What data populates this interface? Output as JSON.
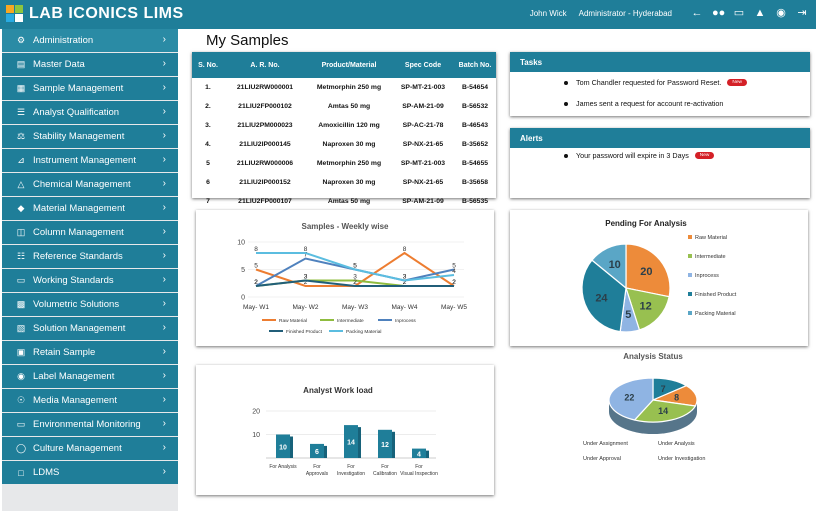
{
  "app": {
    "logo_text": "LAB ICONICS LIMS"
  },
  "header": {
    "user": "John Wick",
    "role": "Administrator - Hyderabad"
  },
  "sidebar": {
    "items": [
      {
        "label": "Administration"
      },
      {
        "label": "Master Data"
      },
      {
        "label": "Sample Management"
      },
      {
        "label": "Analyst Qualification"
      },
      {
        "label": "Stability Management"
      },
      {
        "label": "Instrument Management"
      },
      {
        "label": "Chemical Management"
      },
      {
        "label": "Material Management"
      },
      {
        "label": "Column Management"
      },
      {
        "label": "Reference Standards"
      },
      {
        "label": "Working Standards"
      },
      {
        "label": "Volumetric Solutions"
      },
      {
        "label": "Solution Management"
      },
      {
        "label": "Retain Sample"
      },
      {
        "label": "Label Management"
      },
      {
        "label": "Media Management"
      },
      {
        "label": "Environmental Monitoring"
      },
      {
        "label": "Culture Management"
      },
      {
        "label": "LDMS"
      }
    ]
  },
  "page": {
    "title": "My Samples"
  },
  "samples": {
    "headers": {
      "sno": "S. No.",
      "ar": "A. R. No.",
      "product": "Product/Material",
      "spec": "Spec Code",
      "batch": "Batch No."
    },
    "rows": [
      {
        "sno": "1.",
        "ar": "21LIU2RW000001",
        "product": "Metmorphin 250 mg",
        "spec": "SP-MT-21-003",
        "batch": "B-54654"
      },
      {
        "sno": "2.",
        "ar": "21LIU2FP000102",
        "product": "Amtas 50 mg",
        "spec": "SP-AM-21-09",
        "batch": "B-56532"
      },
      {
        "sno": "3.",
        "ar": "21LIU2PM000023",
        "product": "Amoxicillin 120 mg",
        "spec": "SP-AC-21-78",
        "batch": "B-46543"
      },
      {
        "sno": "4.",
        "ar": "21LIU2IP000145",
        "product": "Naproxen 30 mg",
        "spec": "SP-NX-21-65",
        "batch": "B-35652"
      },
      {
        "sno": "5",
        "ar": "21LIU2RW000006",
        "product": "Metmorphin 250 mg",
        "spec": "SP-MT-21-003",
        "batch": "B-54655"
      },
      {
        "sno": "6",
        "ar": "21LIU2IP000152",
        "product": "Naproxen 30 mg",
        "spec": "SP-NX-21-65",
        "batch": "B-35658"
      },
      {
        "sno": "7",
        "ar": "21LIU2FP000107",
        "product": "Amtas 50 mg",
        "spec": "SP-AM-21-09",
        "batch": "B-56535"
      }
    ]
  },
  "tasks": {
    "title": "Tasks",
    "items": [
      {
        "text": "Tom Chandler requested for Password Reset.",
        "badge": "New"
      },
      {
        "text": "James sent a request for account re-activation",
        "badge": ""
      }
    ]
  },
  "alerts": {
    "title": "Alerts",
    "items": [
      {
        "text": "Your password will expire in 3 Days",
        "badge": "New"
      }
    ]
  },
  "chart_data": [
    {
      "type": "line",
      "title": "Samples - Weekly wise",
      "categories": [
        "May- W1",
        "May- W2",
        "May- W3",
        "May- W4",
        "May- W5"
      ],
      "ylim": [
        0,
        10
      ],
      "yticks": [
        0,
        5,
        10
      ],
      "legend": "bottom",
      "series": [
        {
          "name": "Raw Material",
          "color": "#ed7d31",
          "values": [
            5,
            2,
            2,
            8,
            2
          ]
        },
        {
          "name": "Intermediate",
          "color": "#8fbc3f",
          "values": [
            2,
            3,
            3,
            2,
            2
          ]
        },
        {
          "name": "Inprocess",
          "color": "#4f81bd",
          "values": [
            2,
            7,
            5,
            3,
            5
          ]
        },
        {
          "name": "Finished Product",
          "color": "#215e79",
          "values": [
            2,
            3,
            2,
            2,
            2
          ]
        },
        {
          "name": "Packing Material",
          "color": "#5bbde0",
          "values": [
            8,
            8,
            5,
            3,
            4
          ]
        }
      ]
    },
    {
      "type": "pie",
      "title": "Pending For Analysis",
      "legend": "right",
      "slices": [
        {
          "name": "Raw Material",
          "value": 20,
          "color": "#ed8b3a"
        },
        {
          "name": "Intermediate",
          "value": 12,
          "color": "#98c050"
        },
        {
          "name": "Inprocess",
          "value": 5,
          "color": "#8fb4e3"
        },
        {
          "name": "Finished Product",
          "value": 24,
          "color": "#1f7e99"
        },
        {
          "name": "Packing Material",
          "value": 10,
          "color": "#5aa6c6"
        }
      ]
    },
    {
      "type": "bar",
      "title": "Analyst Work load",
      "categories": [
        "For Analysis",
        "For Approvals",
        "For Investigation",
        "For Calibration",
        "For Visual Inspection"
      ],
      "values": [
        10,
        6,
        14,
        12,
        4
      ],
      "ylim": [
        0,
        20
      ],
      "yticks": [
        10,
        20
      ],
      "color": "#1f7e99"
    },
    {
      "type": "pie",
      "title": "Analysis Status",
      "legend": "bottom",
      "slices": [
        {
          "name": "Under Analysis",
          "value": 7,
          "color": "#1f7e99"
        },
        {
          "name": "Under Assignment",
          "value": 8,
          "color": "#ed8b3a"
        },
        {
          "name": "Under Investigation",
          "value": 14,
          "color": "#98c050"
        },
        {
          "name": "Under Approval",
          "value": 22,
          "color": "#8fb4e3"
        }
      ]
    }
  ]
}
